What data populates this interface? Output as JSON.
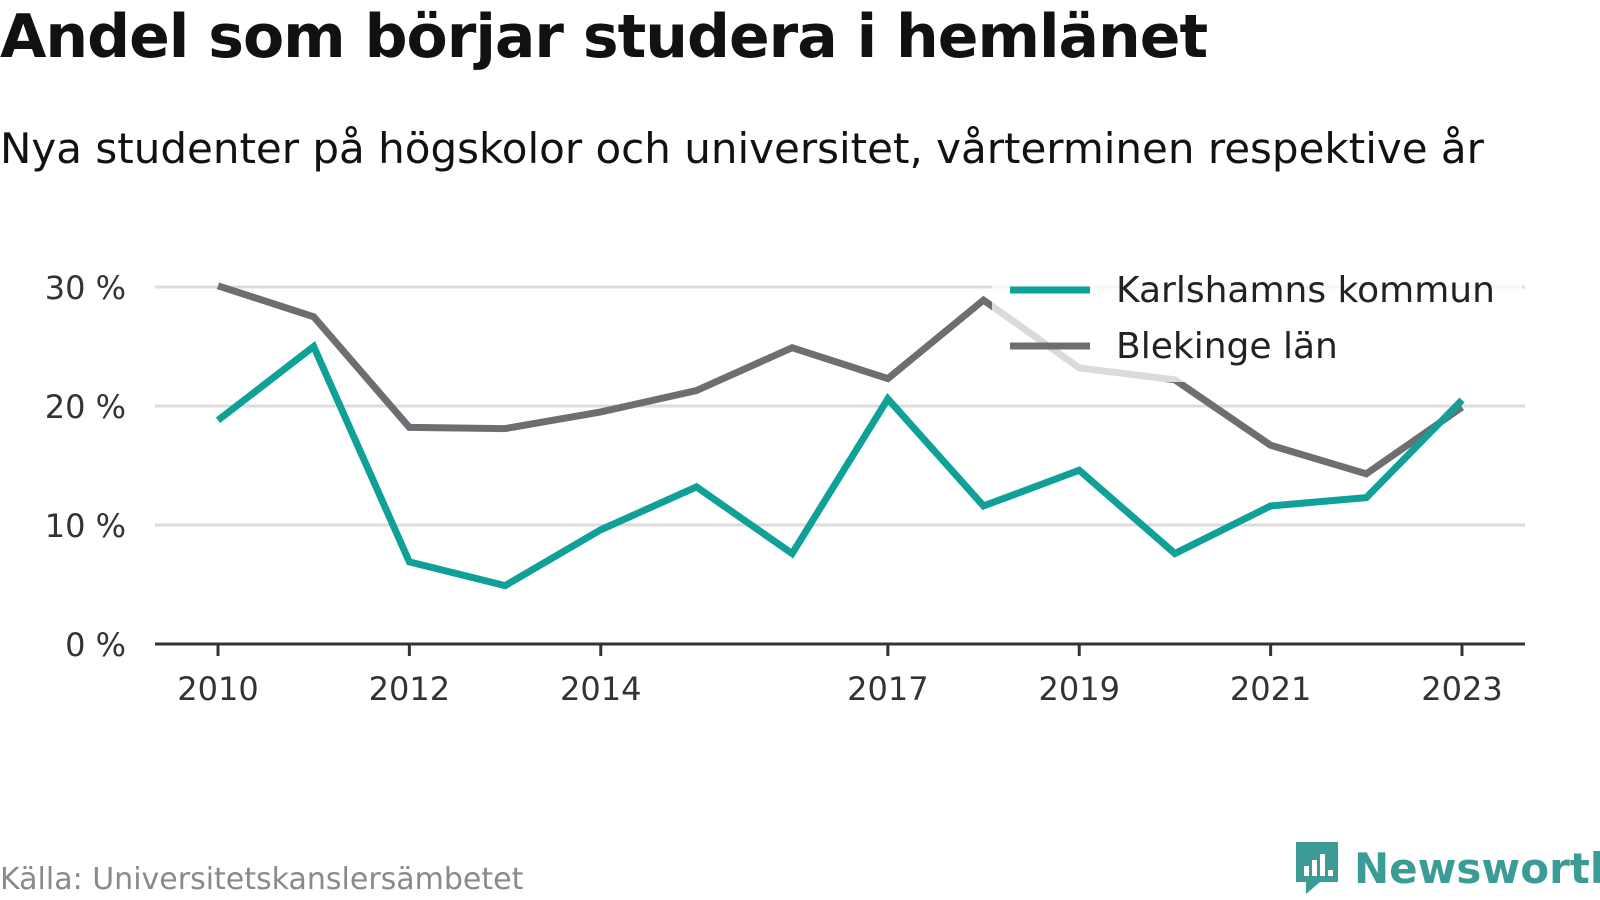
{
  "title": "Andel som börjar studera i hemlänet",
  "subtitle": "Nya studenter på högskolor och universitet, vårterminen respektive år",
  "source": "Källa: Universitetskanslersämbetet",
  "brand": {
    "name": "Newsworthy",
    "icon": "newsworthy-logo-icon",
    "color": "#3b9c96"
  },
  "chart_data": {
    "type": "line",
    "title": "Andel som börjar studera i hemlänet",
    "subtitle": "Nya studenter på högskolor och universitet, vårterminen respektive år",
    "xlabel": "",
    "ylabel": "",
    "x": [
      2010,
      2011,
      2012,
      2013,
      2014,
      2015,
      2016,
      2017,
      2018,
      2019,
      2020,
      2021,
      2022,
      2023
    ],
    "x_tick_labels": [
      "2010",
      "2012",
      "2014",
      "2017",
      "2019",
      "2021",
      "2023"
    ],
    "y_ticks": [
      0,
      10,
      20,
      30
    ],
    "y_tick_labels": [
      "0 %",
      "10 %",
      "20 %",
      "30 %"
    ],
    "ylim": [
      0,
      30
    ],
    "grid": true,
    "legend_position": "top-right",
    "series": [
      {
        "name": "Karlshamns kommun",
        "color": "#0fa098",
        "values": [
          18.8,
          25.0,
          6.9,
          4.9,
          9.6,
          13.2,
          7.6,
          20.6,
          11.6,
          14.6,
          7.6,
          11.6,
          12.3,
          20.5
        ]
      },
      {
        "name": "Blekinge län",
        "color": "#6e6d72",
        "values": [
          30.1,
          27.5,
          18.2,
          18.1,
          19.5,
          21.3,
          24.9,
          22.3,
          28.9,
          23.2,
          22.2,
          16.7,
          14.3,
          19.9
        ]
      }
    ]
  }
}
